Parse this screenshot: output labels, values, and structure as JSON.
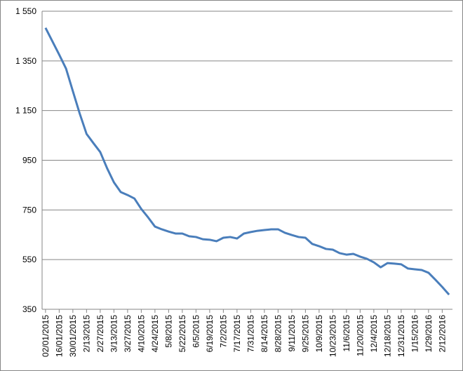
{
  "chart_data": {
    "type": "line",
    "categories": [
      "02/01/2015",
      null,
      "16/01/2015",
      null,
      "30/01/2015",
      null,
      "2/13/2015",
      null,
      "2/27/2015",
      null,
      "3/13/2015",
      null,
      "3/27/2015",
      null,
      "4/10/2015",
      null,
      "4/24/2015",
      null,
      "5/8/2015",
      null,
      "5/22/2015",
      null,
      "6/5/2015",
      null,
      "6/19/2015",
      null,
      "7/2/2015",
      null,
      "7/17/2015",
      null,
      "7/31/2015",
      null,
      "8/14/2015",
      null,
      "8/28/2015",
      null,
      "9/11/2015",
      null,
      "9/25/2015",
      null,
      "10/9/2015",
      null,
      "10/23/2015",
      null,
      "11/6/2015",
      null,
      "11/20/2015",
      null,
      "12/4/2015",
      null,
      "12/18/2015",
      null,
      "12/31/2015",
      null,
      "1/15/2016",
      null,
      "1/29/2016",
      null,
      "2/12/2016",
      null
    ],
    "values": [
      1483,
      1429,
      1375,
      1319,
      1228,
      1138,
      1056,
      1019,
      983,
      918,
      861,
      822,
      810,
      796,
      754,
      720,
      683,
      672,
      663,
      655,
      655,
      644,
      641,
      632,
      630,
      624,
      638,
      641,
      635,
      655,
      661,
      666,
      669,
      672,
      672,
      658,
      649,
      641,
      638,
      613,
      604,
      593,
      590,
      576,
      570,
      573,
      562,
      553,
      539,
      519,
      536,
      534,
      531,
      514,
      511,
      508,
      497,
      469,
      440,
      409
    ],
    "color": "#4a7ebb",
    "ylim": [
      350,
      1550
    ],
    "yticks": [
      350,
      550,
      750,
      950,
      {
        "value": 1150,
        "label": "1 150"
      },
      {
        "value": 1350,
        "label": "1 350"
      },
      {
        "value": 1550,
        "label": "1 550"
      }
    ],
    "grid": true
  }
}
